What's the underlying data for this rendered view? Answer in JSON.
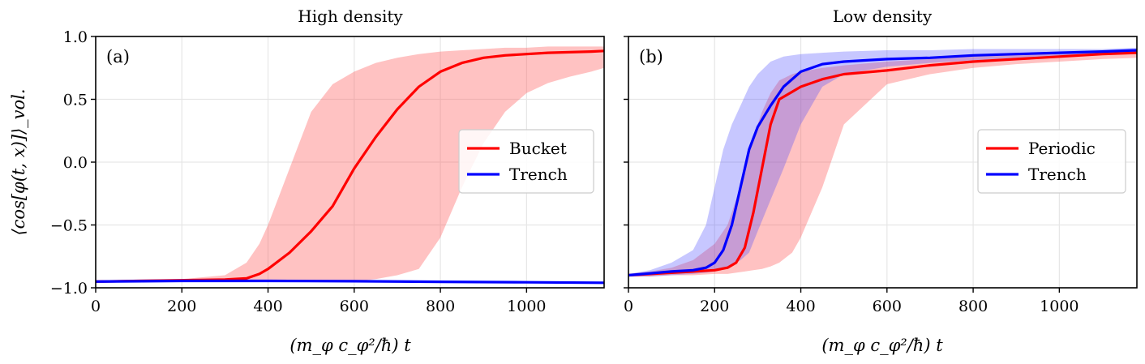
{
  "chart_data": [
    {
      "type": "line",
      "panel_label": "(a)",
      "title": "High density",
      "xlabel": "(m_φ c_φ²/ħ) t",
      "ylabel": "⟨cos[φ(t, x)]⟩_vol.",
      "xlim": [
        0,
        1180
      ],
      "ylim": [
        -1.0,
        1.0
      ],
      "xticks": [
        "0",
        "200",
        "400",
        "600",
        "800",
        "1000"
      ],
      "yticks": [
        "−1.0",
        "−0.5",
        "0.0",
        "0.5",
        "1.0"
      ],
      "grid": true,
      "legend_position": "center-right",
      "series": [
        {
          "name": "Bucket",
          "color": "#ff0000",
          "x": [
            0,
            100,
            200,
            300,
            350,
            380,
            400,
            450,
            500,
            550,
            600,
            650,
            700,
            750,
            800,
            850,
            900,
            950,
            1000,
            1050,
            1100,
            1150,
            1180
          ],
          "y": [
            -0.95,
            -0.945,
            -0.94,
            -0.935,
            -0.925,
            -0.89,
            -0.85,
            -0.72,
            -0.55,
            -0.35,
            -0.05,
            0.2,
            0.42,
            0.6,
            0.72,
            0.79,
            0.83,
            0.85,
            0.86,
            0.87,
            0.875,
            0.88,
            0.885
          ],
          "band_upper": [
            -0.94,
            -0.935,
            -0.93,
            -0.9,
            -0.8,
            -0.65,
            -0.5,
            -0.05,
            0.4,
            0.62,
            0.72,
            0.79,
            0.83,
            0.86,
            0.88,
            0.89,
            0.9,
            0.91,
            0.91,
            0.92,
            0.92,
            0.92,
            0.92
          ],
          "band_lower": [
            -0.955,
            -0.955,
            -0.955,
            -0.955,
            -0.955,
            -0.955,
            -0.955,
            -0.955,
            -0.955,
            -0.955,
            -0.95,
            -0.93,
            -0.9,
            -0.85,
            -0.6,
            -0.2,
            0.15,
            0.4,
            0.55,
            0.63,
            0.68,
            0.72,
            0.75
          ]
        },
        {
          "name": "Trench",
          "color": "#0000ff",
          "x": [
            0,
            200,
            400,
            600,
            800,
            1000,
            1180
          ],
          "y": [
            -0.95,
            -0.945,
            -0.945,
            -0.948,
            -0.952,
            -0.956,
            -0.96
          ]
        }
      ]
    },
    {
      "type": "line",
      "panel_label": "(b)",
      "title": "Low density",
      "xlabel": "(m_φ c_φ²/ħ) t",
      "xlim": [
        0,
        1180
      ],
      "ylim": [
        -1.0,
        1.0
      ],
      "xticks": [
        "0",
        "200",
        "400",
        "600",
        "800",
        "1000"
      ],
      "grid": true,
      "legend_position": "center-right",
      "series": [
        {
          "name": "Periodic",
          "color": "#ff0000",
          "x": [
            0,
            50,
            100,
            150,
            200,
            230,
            250,
            270,
            290,
            310,
            330,
            350,
            380,
            400,
            450,
            500,
            600,
            700,
            800,
            900,
            1000,
            1100,
            1180
          ],
          "y": [
            -0.9,
            -0.89,
            -0.88,
            -0.87,
            -0.86,
            -0.84,
            -0.8,
            -0.68,
            -0.4,
            -0.05,
            0.3,
            0.5,
            0.56,
            0.6,
            0.66,
            0.7,
            0.73,
            0.77,
            0.8,
            0.82,
            0.84,
            0.86,
            0.87
          ],
          "band_upper": [
            -0.89,
            -0.87,
            -0.84,
            -0.78,
            -0.65,
            -0.5,
            -0.3,
            -0.05,
            0.2,
            0.4,
            0.55,
            0.65,
            0.7,
            0.72,
            0.75,
            0.77,
            0.8,
            0.82,
            0.84,
            0.86,
            0.87,
            0.88,
            0.89
          ],
          "band_lower": [
            -0.91,
            -0.91,
            -0.9,
            -0.9,
            -0.89,
            -0.89,
            -0.88,
            -0.87,
            -0.86,
            -0.85,
            -0.83,
            -0.8,
            -0.72,
            -0.6,
            -0.2,
            0.3,
            0.62,
            0.7,
            0.75,
            0.78,
            0.8,
            0.82,
            0.83
          ]
        },
        {
          "name": "Trench",
          "color": "#0000ff",
          "x": [
            0,
            50,
            100,
            150,
            180,
            200,
            220,
            240,
            260,
            280,
            300,
            330,
            360,
            400,
            450,
            500,
            600,
            700,
            800,
            900,
            1000,
            1100,
            1180
          ],
          "y": [
            -0.9,
            -0.885,
            -0.87,
            -0.86,
            -0.84,
            -0.8,
            -0.7,
            -0.5,
            -0.2,
            0.1,
            0.28,
            0.45,
            0.6,
            0.72,
            0.78,
            0.8,
            0.82,
            0.83,
            0.85,
            0.86,
            0.87,
            0.88,
            0.89
          ],
          "band_upper": [
            -0.89,
            -0.86,
            -0.8,
            -0.7,
            -0.5,
            -0.2,
            0.1,
            0.3,
            0.45,
            0.6,
            0.7,
            0.8,
            0.84,
            0.86,
            0.87,
            0.88,
            0.89,
            0.89,
            0.9,
            0.9,
            0.9,
            0.9,
            0.91
          ],
          "band_lower": [
            -0.91,
            -0.91,
            -0.9,
            -0.89,
            -0.88,
            -0.87,
            -0.85,
            -0.82,
            -0.78,
            -0.72,
            -0.55,
            -0.3,
            -0.05,
            0.3,
            0.6,
            0.7,
            0.76,
            0.79,
            0.81,
            0.83,
            0.84,
            0.86,
            0.87
          ]
        }
      ]
    }
  ]
}
